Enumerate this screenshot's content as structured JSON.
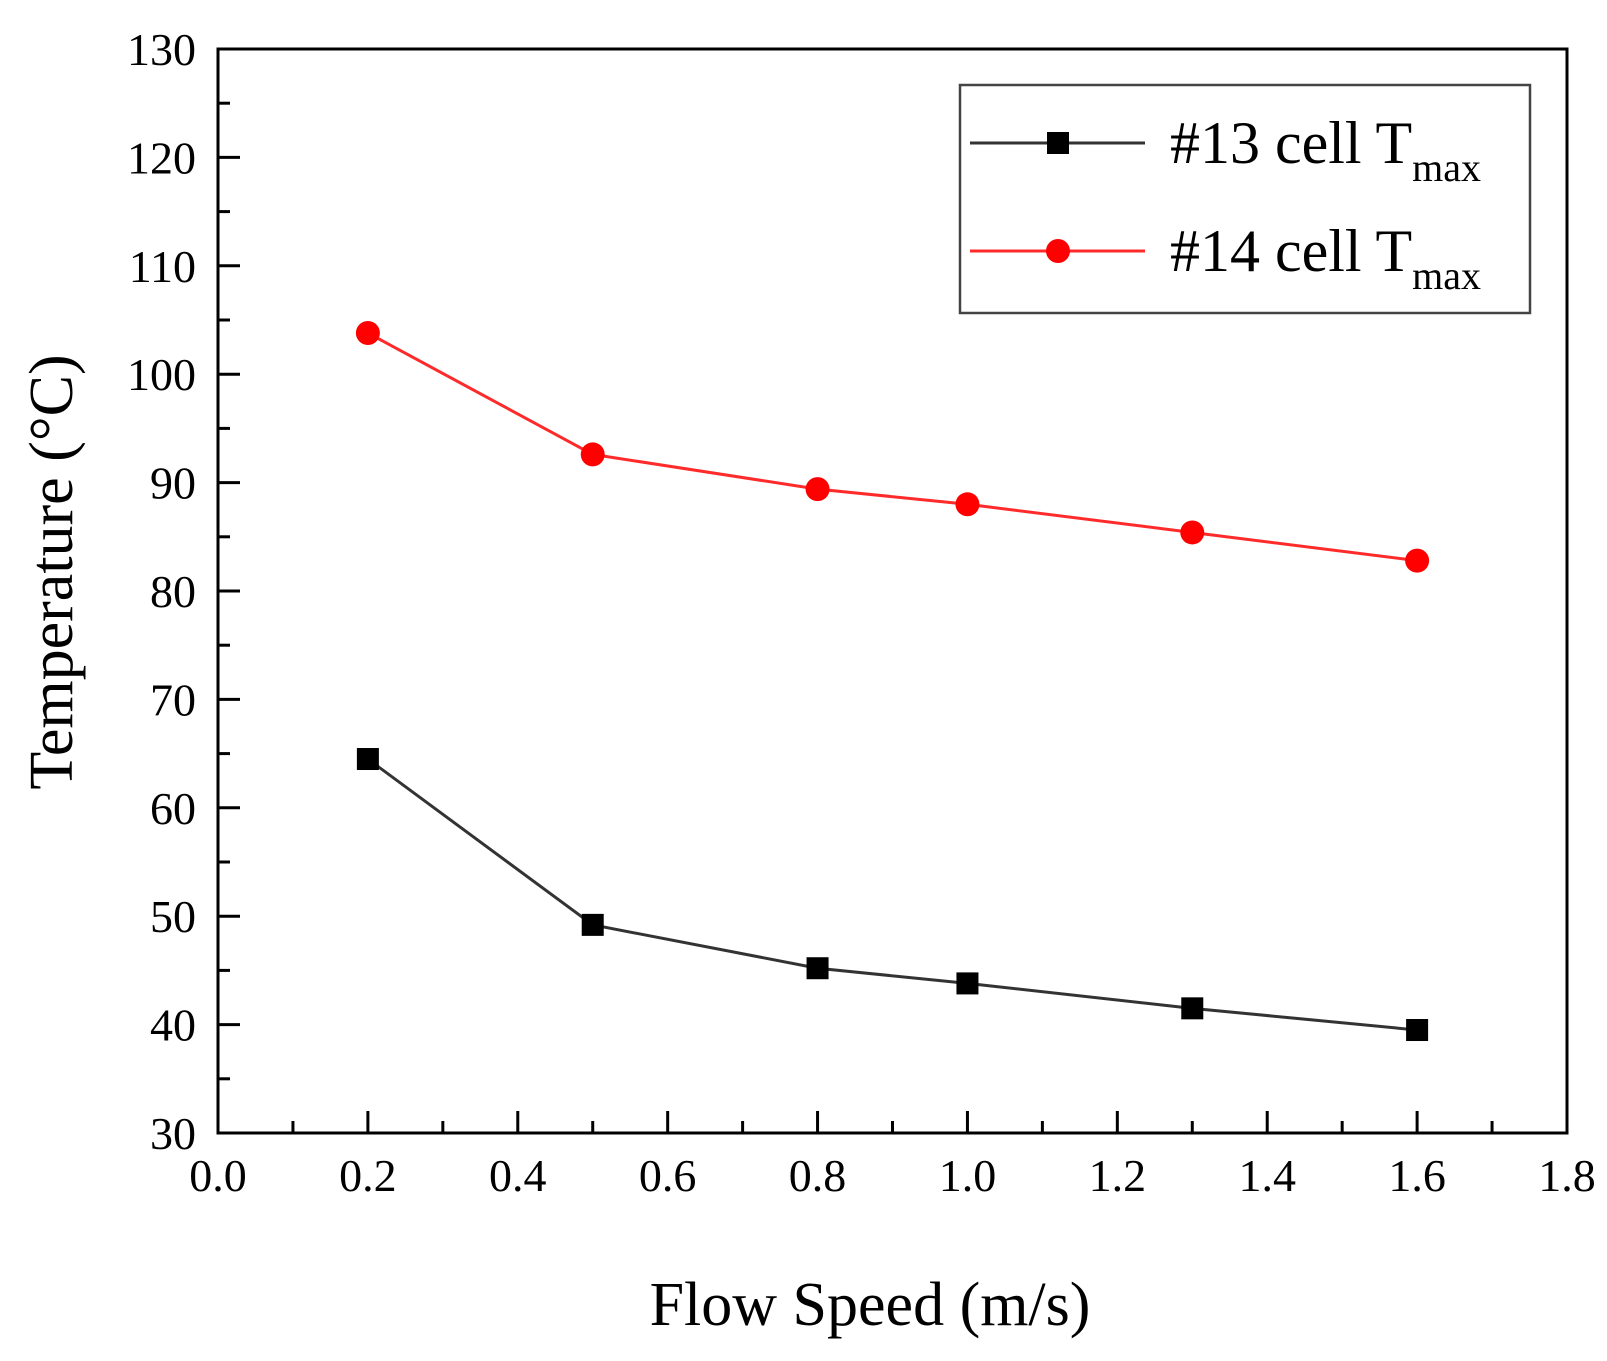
{
  "chart_data": {
    "type": "line",
    "title": "",
    "xlabel": "Flow Speed (m/s)",
    "ylabel": "Temperature (°C)",
    "xlim": [
      0.0,
      1.8
    ],
    "ylim": [
      30,
      130
    ],
    "xticks": [
      "0.0",
      "0.2",
      "0.4",
      "0.6",
      "0.8",
      "1.0",
      "1.2",
      "1.4",
      "1.6",
      "1.8"
    ],
    "yticks": [
      "30",
      "40",
      "50",
      "60",
      "70",
      "80",
      "90",
      "100",
      "110",
      "120",
      "130"
    ],
    "x": [
      0.2,
      0.5,
      0.8,
      1.0,
      1.3,
      1.6
    ],
    "legend_position": "top-right",
    "grid": false,
    "series": [
      {
        "name": "#13 cell T",
        "subscript": "max",
        "values": [
          64.5,
          49.2,
          45.2,
          43.8,
          41.5,
          39.5
        ],
        "color": "#333333",
        "marker": "square",
        "marker_color": "#000000"
      },
      {
        "name": "#14 cell T",
        "subscript": "max",
        "values": [
          103.8,
          92.6,
          89.4,
          88.0,
          85.4,
          82.8
        ],
        "color": "#ff2a2a",
        "marker": "circle",
        "marker_color": "#ff0000"
      }
    ]
  }
}
